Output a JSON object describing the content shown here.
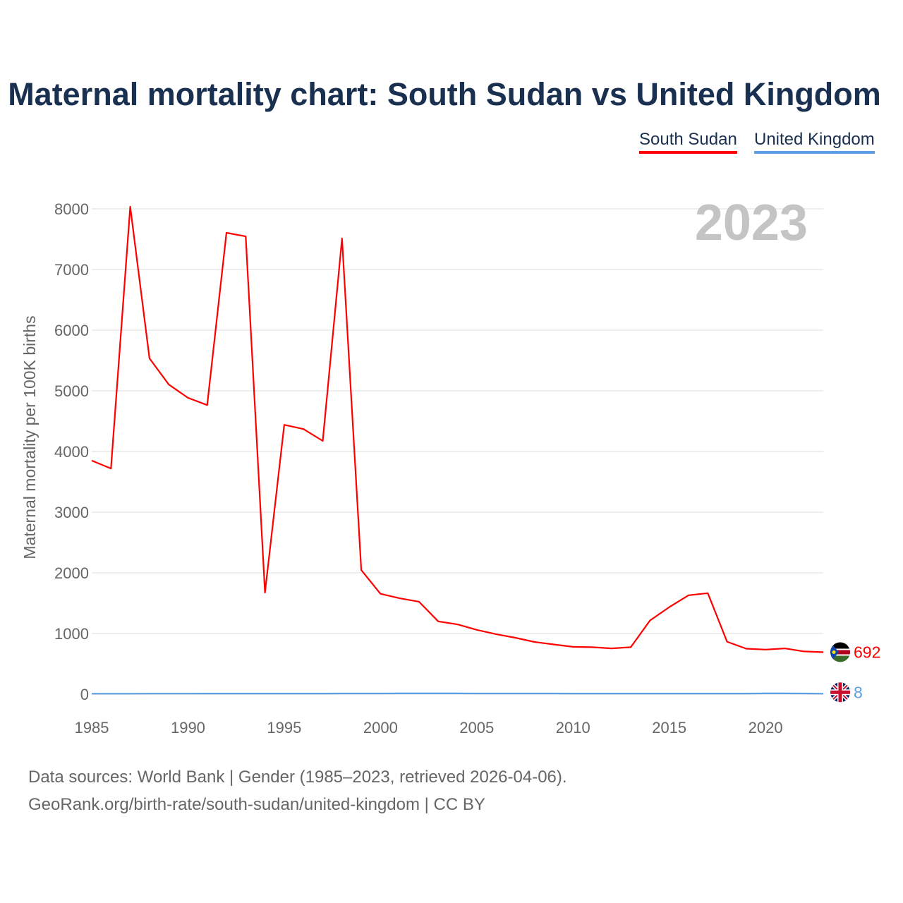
{
  "title": "Maternal mortality chart: South Sudan vs United Kingdom",
  "year_label": "2023",
  "footer": {
    "line1": "Data sources: World Bank | Gender (1985–2023, retrieved 2026-04-06).",
    "line2": "GeoRank.org/birth-rate/south-sudan/united-kingdom | CC BY"
  },
  "chart_data": {
    "type": "line",
    "title": "Maternal mortality chart: South Sudan vs United Kingdom",
    "xlabel": "",
    "ylabel": "Maternal mortality per 100K births",
    "xlim": [
      1985,
      2023
    ],
    "ylim": [
      0,
      8000
    ],
    "xticks": [
      1985,
      1990,
      1995,
      2000,
      2005,
      2010,
      2015,
      2020
    ],
    "yticks": [
      0,
      1000,
      2000,
      3000,
      4000,
      5000,
      6000,
      7000,
      8000
    ],
    "grid": true,
    "legend_position": "top-right",
    "x": [
      1985,
      1986,
      1987,
      1988,
      1989,
      1990,
      1991,
      1992,
      1993,
      1994,
      1995,
      1996,
      1997,
      1998,
      1999,
      2000,
      2001,
      2002,
      2003,
      2004,
      2005,
      2006,
      2007,
      2008,
      2009,
      2010,
      2011,
      2012,
      2013,
      2014,
      2015,
      2016,
      2017,
      2018,
      2019,
      2020,
      2021,
      2022,
      2023
    ],
    "series": [
      {
        "name": "South Sudan",
        "color": "#ff0000",
        "end_label": "692",
        "values": [
          3850,
          3720,
          8035,
          5535,
          5105,
          4885,
          4765,
          7605,
          7545,
          1675,
          4440,
          4370,
          4175,
          7510,
          2045,
          1655,
          1580,
          1525,
          1200,
          1150,
          1060,
          990,
          930,
          860,
          820,
          780,
          775,
          755,
          775,
          1215,
          1435,
          1630,
          1665,
          865,
          750,
          735,
          755,
          705,
          692
        ]
      },
      {
        "name": "United Kingdom",
        "color": "#5aa0e6",
        "end_label": "8",
        "values": [
          8,
          8,
          8,
          9,
          9,
          9,
          10,
          10,
          11,
          11,
          11,
          11,
          11,
          12,
          12,
          12,
          13,
          13,
          13,
          13,
          12,
          12,
          12,
          12,
          12,
          11,
          11,
          10,
          10,
          10,
          10,
          10,
          10,
          10,
          10,
          13,
          13,
          12,
          8
        ]
      }
    ]
  }
}
